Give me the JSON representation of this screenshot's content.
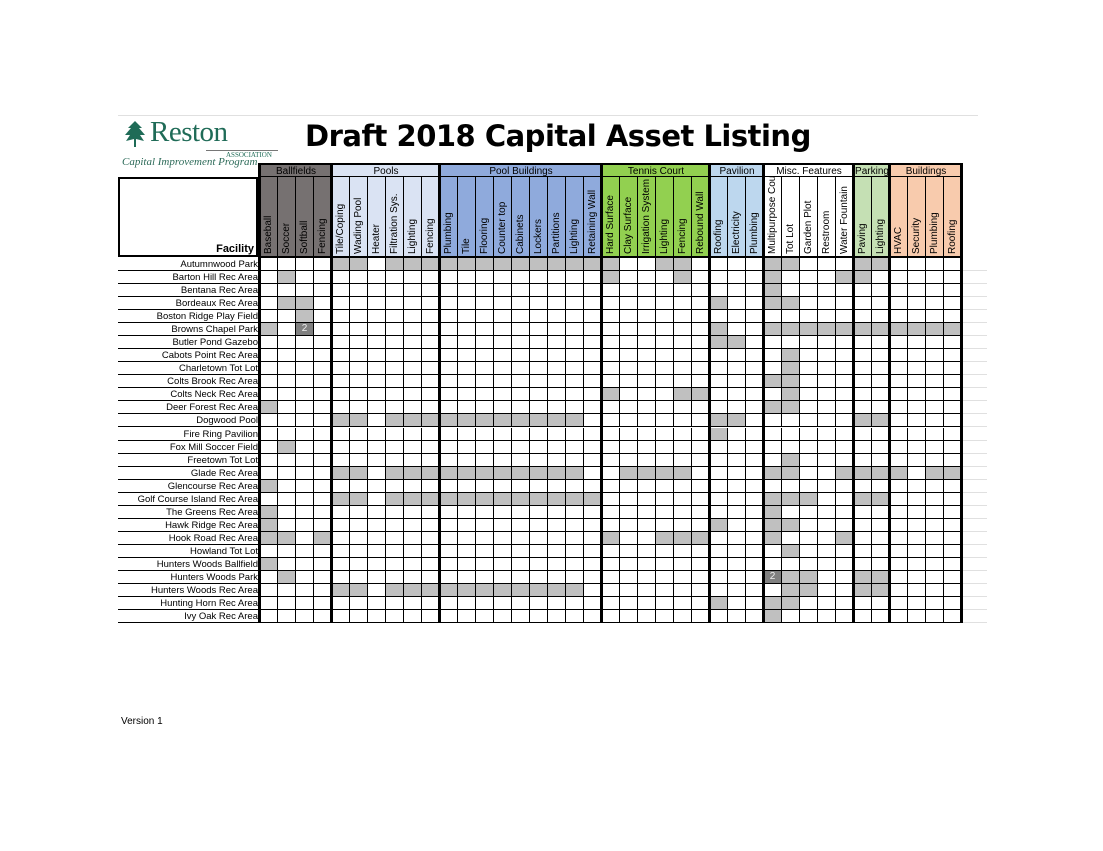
{
  "logo": {
    "name": "Reston",
    "association": "ASSOCIATION",
    "program": "Capital Improvement Program"
  },
  "title": "Draft 2018 Capital Asset Listing",
  "facility_header": "Facility",
  "version": "Version 1",
  "colors": {
    "shaded": "#c0c0c0",
    "dark": "#808080"
  },
  "groups": [
    {
      "label": "Ballfields",
      "color": "#767171",
      "columns": [
        "Baseball",
        "Soccer",
        "Softball",
        "Fencing"
      ]
    },
    {
      "label": "Pools",
      "color": "#dae3f3",
      "columns": [
        "Tile/Coping",
        "Wading Pool",
        "Heater",
        "Filtration Sys.",
        "Lighting",
        "Fencing"
      ]
    },
    {
      "label": "Pool Buildings",
      "color": "#8faadc",
      "columns": [
        "Plumbing",
        "Tile",
        "Flooring",
        "Counter top",
        "Cabinets",
        "Lockers",
        "Partitions",
        "Lighting",
        "Retaining Wall"
      ]
    },
    {
      "label": "Tennis Court",
      "color": "#92d050",
      "columns": [
        "Hard Surface",
        "Clay Surface",
        "Irrigation System",
        "Lighting",
        "Fencing",
        "Rebound Wall"
      ]
    },
    {
      "label": "Pavilion",
      "color": "#bdd7ee",
      "columns": [
        "Roofing",
        "Electricity",
        "Plumbing"
      ]
    },
    {
      "label": "Misc. Features",
      "color": "#ffffff",
      "columns": [
        "Multipurpose Court",
        "Tot Lot",
        "Garden Plot",
        "Restroom",
        "Water Fountain"
      ]
    },
    {
      "label": "Parking",
      "color": "#c5e0b4",
      "columns": [
        "Paving",
        "Lighting"
      ]
    },
    {
      "label": "Buildings",
      "color": "#f8cbad",
      "columns": [
        "HVAC",
        "Security",
        "Plumbing",
        "Roofing"
      ]
    }
  ],
  "rows": [
    {
      "facility": "Autumnwood Park",
      "marked": [
        4,
        5,
        7,
        8,
        9,
        10,
        11,
        12,
        13,
        14,
        15,
        16,
        17,
        18,
        19,
        22,
        23,
        28,
        29,
        33,
        34
      ]
    },
    {
      "facility": "Barton Hill Rec Area",
      "marked": [
        1,
        19,
        23,
        28,
        32,
        33
      ]
    },
    {
      "facility": "Bentana Rec Area",
      "marked": [
        28
      ]
    },
    {
      "facility": "Bordeaux Rec Area",
      "marked": [
        1,
        2,
        25,
        28,
        29
      ]
    },
    {
      "facility": "Boston Ridge Play Field",
      "marked": [
        2
      ]
    },
    {
      "facility": "Browns Chapel Park",
      "marked": [
        0,
        25,
        28,
        29,
        30,
        31,
        32,
        33,
        34,
        35,
        36,
        37,
        38
      ],
      "counts": {
        "2": "2"
      }
    },
    {
      "facility": "Butler Pond Gazebo",
      "marked": [
        25,
        26
      ]
    },
    {
      "facility": "Cabots Point Rec Area",
      "marked": [
        29
      ]
    },
    {
      "facility": "Charletown Tot Lot",
      "marked": [
        29
      ]
    },
    {
      "facility": "Colts Brook Rec Area",
      "marked": [
        28,
        29
      ]
    },
    {
      "facility": "Colts Neck Rec Area",
      "marked": [
        19,
        23,
        24,
        29
      ]
    },
    {
      "facility": "Deer Forest Rec Area",
      "marked": [
        0,
        28,
        29
      ]
    },
    {
      "facility": "Dogwood Pool",
      "marked": [
        4,
        5,
        7,
        8,
        9,
        10,
        11,
        12,
        13,
        14,
        15,
        16,
        17,
        25,
        26,
        33,
        34
      ]
    },
    {
      "facility": "Fire Ring Pavilion",
      "marked": [
        25
      ]
    },
    {
      "facility": "Fox Mill Soccer Field",
      "marked": [
        1
      ]
    },
    {
      "facility": "Freetown Tot Lot",
      "marked": [
        29
      ]
    },
    {
      "facility": "Glade Rec Area",
      "marked": [
        4,
        5,
        7,
        8,
        9,
        10,
        11,
        12,
        13,
        14,
        15,
        16,
        17,
        20,
        21,
        22,
        23,
        28,
        29,
        32,
        33,
        34,
        35,
        37,
        38
      ]
    },
    {
      "facility": "Glencourse Rec Area",
      "marked": [
        0
      ]
    },
    {
      "facility": "Golf Course Island Rec Area",
      "marked": [
        4,
        5,
        7,
        8,
        9,
        10,
        11,
        12,
        13,
        14,
        15,
        16,
        17,
        18,
        28,
        29,
        30,
        33,
        34
      ]
    },
    {
      "facility": "The Greens Rec Area",
      "marked": [
        0,
        28
      ]
    },
    {
      "facility": "Hawk Ridge Rec Area",
      "marked": [
        0,
        25,
        28,
        29
      ]
    },
    {
      "facility": "Hook Road Rec Area",
      "marked": [
        0,
        1,
        3,
        19,
        22,
        23,
        24,
        28,
        32
      ]
    },
    {
      "facility": "Howland Tot Lot",
      "marked": [
        29
      ]
    },
    {
      "facility": "Hunters Woods Ballfield",
      "marked": [
        0
      ]
    },
    {
      "facility": "Hunters Woods Park",
      "marked": [
        1,
        29,
        30,
        33,
        34
      ],
      "counts": {
        "28": "2"
      }
    },
    {
      "facility": "Hunters Woods Rec Area",
      "marked": [
        4,
        5,
        7,
        8,
        9,
        10,
        11,
        12,
        13,
        14,
        15,
        16,
        17,
        29,
        30,
        33,
        34
      ]
    },
    {
      "facility": "Hunting Horn Rec Area",
      "marked": [
        25,
        28,
        29
      ]
    },
    {
      "facility": "Ivy Oak Rec Area",
      "marked": [
        28
      ]
    }
  ]
}
